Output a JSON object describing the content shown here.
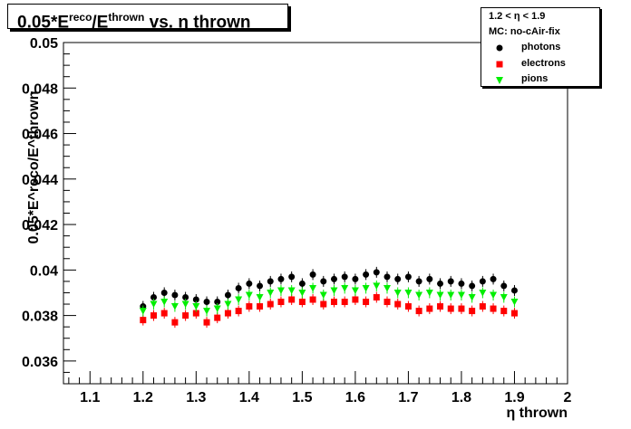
{
  "chart_data": {
    "type": "scatter",
    "title_parts": [
      "0.05*E",
      "reco",
      "/E",
      "thrown",
      " vs. η thrown"
    ],
    "xlabel": "η thrown",
    "ylabel": "0.05*E^reco/E^thrown",
    "xlim": [
      1.05,
      2.0
    ],
    "ylim": [
      0.035,
      0.05
    ],
    "x_ticks": [
      "1.1",
      "1.2",
      "1.3",
      "1.4",
      "1.5",
      "1.6",
      "1.7",
      "1.8",
      "1.9",
      "2"
    ],
    "y_ticks": [
      "0.036",
      "0.038",
      "0.04",
      "0.042",
      "0.044",
      "0.046",
      "0.048",
      "0.05"
    ],
    "legend": {
      "header_lines": [
        "1.2 < η < 1.9",
        "MC: no-cAir-fix"
      ],
      "placement": "top-right"
    },
    "series": [
      {
        "name": "photons",
        "marker": "circle",
        "color": "#000000",
        "x": [
          1.2,
          1.22,
          1.24,
          1.26,
          1.28,
          1.3,
          1.32,
          1.34,
          1.36,
          1.38,
          1.4,
          1.42,
          1.44,
          1.46,
          1.48,
          1.5,
          1.52,
          1.54,
          1.56,
          1.58,
          1.6,
          1.62,
          1.64,
          1.66,
          1.68,
          1.7,
          1.72,
          1.74,
          1.76,
          1.78,
          1.8,
          1.82,
          1.84,
          1.86,
          1.88,
          1.9
        ],
        "y": [
          0.0384,
          0.0388,
          0.039,
          0.0389,
          0.0388,
          0.0387,
          0.0386,
          0.0386,
          0.0389,
          0.0392,
          0.0394,
          0.0393,
          0.0395,
          0.0396,
          0.0397,
          0.0394,
          0.0398,
          0.0395,
          0.0396,
          0.0397,
          0.0396,
          0.0398,
          0.0399,
          0.0397,
          0.0396,
          0.0397,
          0.0395,
          0.0396,
          0.0394,
          0.0395,
          0.0394,
          0.0393,
          0.0395,
          0.0396,
          0.0393,
          0.0391
        ]
      },
      {
        "name": "electrons",
        "marker": "square",
        "color": "#ff0000",
        "x": [
          1.2,
          1.22,
          1.24,
          1.26,
          1.28,
          1.3,
          1.32,
          1.34,
          1.36,
          1.38,
          1.4,
          1.42,
          1.44,
          1.46,
          1.48,
          1.5,
          1.52,
          1.54,
          1.56,
          1.58,
          1.6,
          1.62,
          1.64,
          1.66,
          1.68,
          1.7,
          1.72,
          1.74,
          1.76,
          1.78,
          1.8,
          1.82,
          1.84,
          1.86,
          1.88,
          1.9
        ],
        "y": [
          0.0378,
          0.038,
          0.0381,
          0.0377,
          0.038,
          0.0381,
          0.0377,
          0.0379,
          0.0381,
          0.0382,
          0.0384,
          0.0384,
          0.0385,
          0.0386,
          0.0387,
          0.0386,
          0.0387,
          0.0385,
          0.0386,
          0.0386,
          0.0387,
          0.0386,
          0.0388,
          0.0386,
          0.0385,
          0.0384,
          0.0382,
          0.0383,
          0.0384,
          0.0383,
          0.0383,
          0.0382,
          0.0384,
          0.0383,
          0.0382,
          0.0381
        ]
      },
      {
        "name": "pions",
        "marker": "triangle-down",
        "color": "#00ee00",
        "x": [
          1.2,
          1.22,
          1.24,
          1.26,
          1.28,
          1.3,
          1.32,
          1.34,
          1.36,
          1.38,
          1.4,
          1.42,
          1.44,
          1.46,
          1.48,
          1.5,
          1.52,
          1.54,
          1.56,
          1.58,
          1.6,
          1.62,
          1.64,
          1.66,
          1.68,
          1.7,
          1.72,
          1.74,
          1.76,
          1.78,
          1.8,
          1.82,
          1.84,
          1.86,
          1.88,
          1.9
        ],
        "y": [
          0.0382,
          0.0385,
          0.0386,
          0.0384,
          0.0385,
          0.0384,
          0.0382,
          0.0383,
          0.0385,
          0.0387,
          0.0389,
          0.0388,
          0.039,
          0.0391,
          0.0391,
          0.039,
          0.0392,
          0.0389,
          0.0391,
          0.0392,
          0.0391,
          0.0392,
          0.0393,
          0.0392,
          0.039,
          0.039,
          0.0389,
          0.039,
          0.0389,
          0.0389,
          0.0389,
          0.0388,
          0.039,
          0.0389,
          0.0388,
          0.0386
        ]
      }
    ],
    "grid": false
  }
}
